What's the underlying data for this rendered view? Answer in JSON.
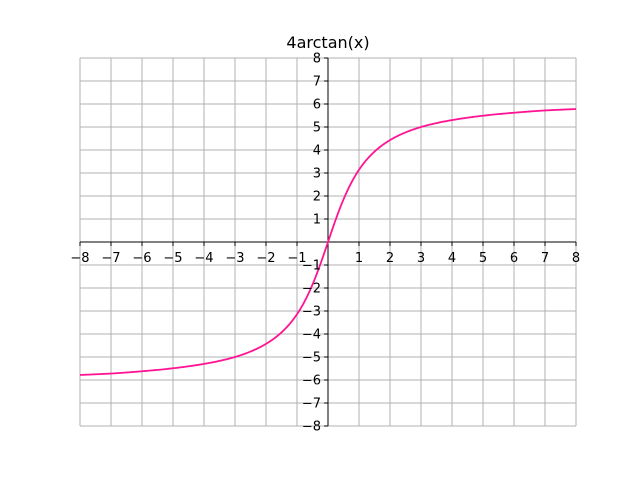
{
  "chart_data": {
    "type": "line",
    "title": "4arctan(x)",
    "xlabel": "",
    "ylabel": "",
    "xlim": [
      -8,
      8
    ],
    "ylim": [
      -8,
      8
    ],
    "grid": true,
    "axes_through_origin": true,
    "x_ticks": [
      -8,
      -7,
      -6,
      -5,
      -4,
      -3,
      -2,
      -1,
      1,
      2,
      3,
      4,
      5,
      6,
      7,
      8
    ],
    "y_ticks": [
      -8,
      -7,
      -6,
      -5,
      -4,
      -3,
      -2,
      -1,
      1,
      2,
      3,
      4,
      5,
      6,
      7,
      8
    ],
    "x_tick_labels": [
      "−8",
      "−7",
      "−6",
      "−5",
      "−4",
      "−3",
      "−2",
      "−1",
      "1",
      "2",
      "3",
      "4",
      "5",
      "6",
      "7",
      "8"
    ],
    "y_tick_labels": [
      "−8",
      "−7",
      "−6",
      "−5",
      "−4",
      "−3",
      "−2",
      "−1",
      "1",
      "2",
      "3",
      "4",
      "5",
      "6",
      "7",
      "8"
    ],
    "series": [
      {
        "color": "#ff1493",
        "x": [
          -8,
          -7,
          -6,
          -5,
          -4,
          -3,
          -2,
          -1.5,
          -1,
          -0.5,
          0,
          0.5,
          1,
          1.5,
          2,
          3,
          4,
          5,
          6,
          7,
          8
        ],
        "y": [
          -5.78,
          -5.72,
          -5.62,
          -5.49,
          -5.3,
          -5.0,
          -4.43,
          -3.93,
          -3.14,
          -1.85,
          0,
          1.85,
          3.14,
          3.93,
          4.43,
          5.0,
          5.3,
          5.49,
          5.62,
          5.72,
          5.78
        ]
      }
    ],
    "colors": {
      "grid": "#b0b0b0",
      "axis": "#000000",
      "line": "#ff1493"
    }
  }
}
